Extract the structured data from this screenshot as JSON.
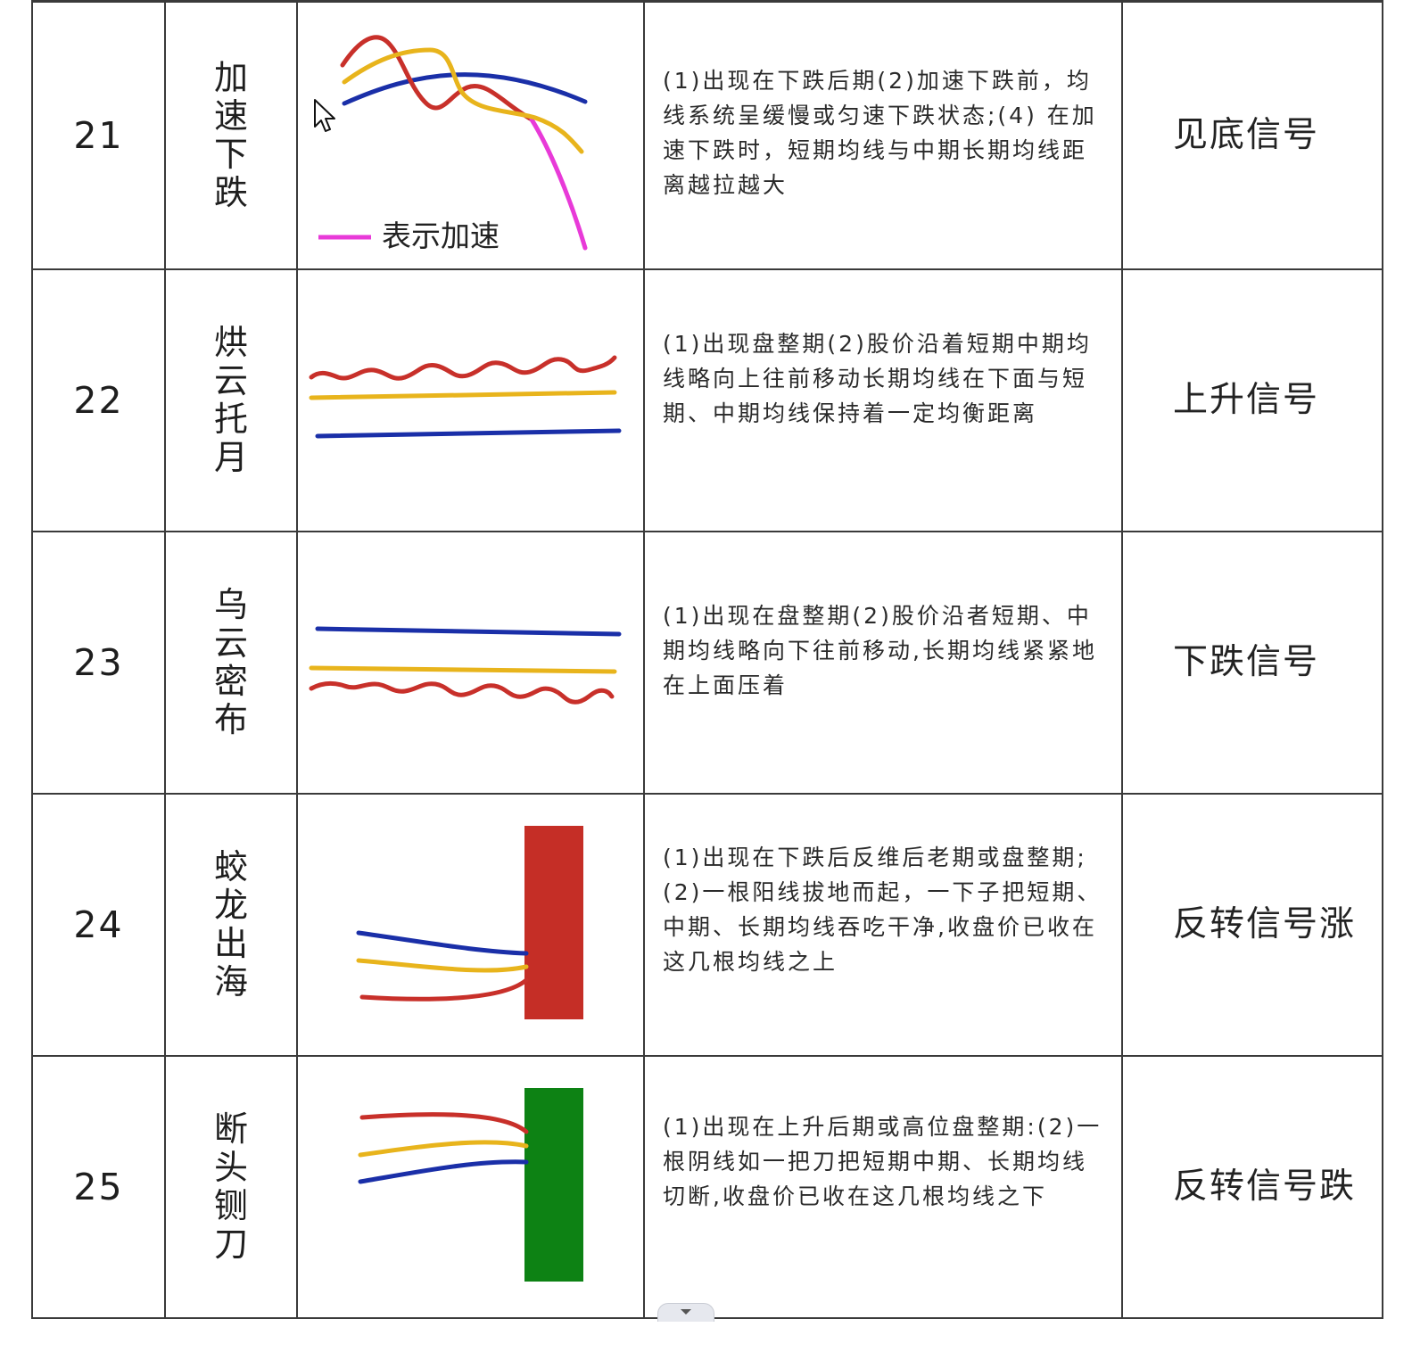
{
  "rows": [
    {
      "num": "21",
      "name": "加速下跌",
      "legend_label": "表示加速",
      "description": "(1)出现在下跌后期(2)加速下跌前，均线系统呈缓慢或匀速下跌状态;(4) 在加速下跌时，短期均线与中期长期均线距离越拉越大",
      "signal": "见底信号"
    },
    {
      "num": "22",
      "name": "烘云托月",
      "description": "(1)出现盘整期(2)股价沿着短期中期均线略向上往前移动长期均线在下面与短期、中期均线保持着一定均衡距离",
      "signal": "上升信号"
    },
    {
      "num": "23",
      "name": "乌云密布",
      "description": "(1)出现在盘整期(2)股价沿者短期、中期均线略向下往前移动,长期均线紧紧地在上面压着",
      "signal": "下跌信号"
    },
    {
      "num": "24",
      "name": "蛟龙出海",
      "description": "(1)出现在下跌后反维后老期或盘整期;(2)一根阳线拔地而起，一下子把短期、中期、长期均线吞吃干净,收盘价已收在这几根均线之上",
      "signal": "反转信号涨"
    },
    {
      "num": "25",
      "name": "断头铡刀",
      "description": "(1)出现在上升后期或高位盘整期:(2)一根阴线如一把刀把短期中期、长期均线切断,收盘价已收在这几根均线之下",
      "signal": "反转信号跌"
    }
  ],
  "colors": {
    "short_ma": "#c8302a",
    "mid_ma": "#e8b41c",
    "long_ma": "#1a2fa8",
    "accelerate": "#e83ad8",
    "bull_candle": "#c52e26",
    "bear_candle": "#0d8214",
    "border": "#3a3a3a"
  },
  "icons": {
    "cursor": "arrow-cursor-icon",
    "scroll": "chevron-down-icon"
  }
}
